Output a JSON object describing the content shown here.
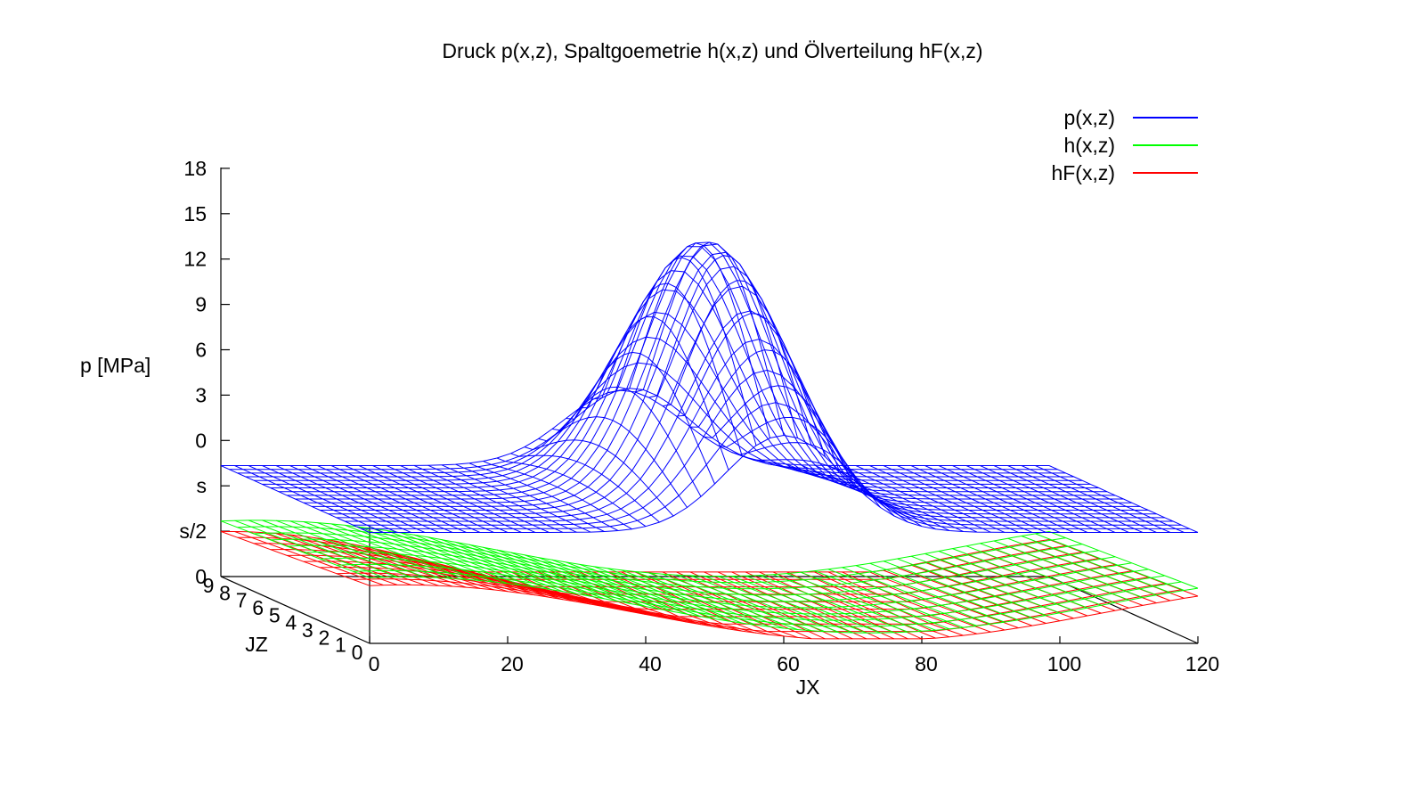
{
  "chart_data": {
    "type": "surface3d",
    "title": "Druck p(x,z), Spaltgoemetrie h(x,z) und Ölverteilung hF(x,z)",
    "xlabel": "JX",
    "ylabel": "JZ",
    "zlabel": "p [MPa]",
    "x_ticks": [
      "0",
      "20",
      "40",
      "60",
      "80",
      "100",
      "120"
    ],
    "y_ticks": [
      "0",
      "1",
      "2",
      "3",
      "4",
      "5",
      "6",
      "7",
      "8",
      "9"
    ],
    "z_ticks": [
      "0",
      "s/2",
      "s",
      "0",
      "3",
      "6",
      "9",
      "12",
      "15",
      "18"
    ],
    "xlim": [
      0,
      120
    ],
    "ylim": [
      0,
      9
    ],
    "legend_position": "top-right",
    "series": [
      {
        "name": "p(x,z)",
        "color": "#0000ff",
        "peak_value": 12,
        "peak_x": 60
      },
      {
        "name": "h(x,z)",
        "color": "#00ff00"
      },
      {
        "name": "hF(x,z)",
        "color": "#ff0000"
      }
    ]
  }
}
